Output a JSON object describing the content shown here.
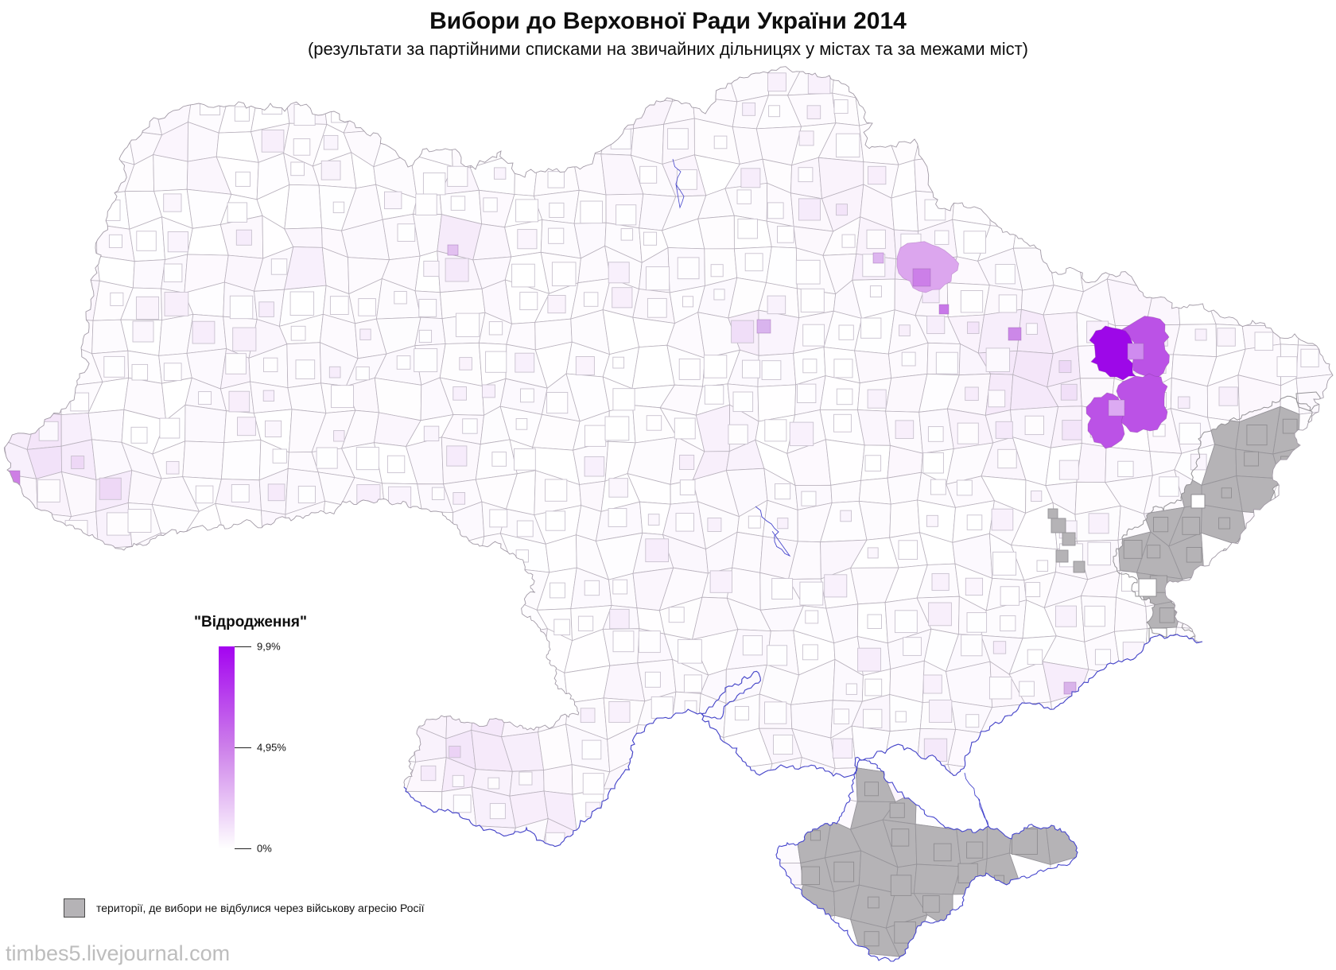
{
  "title": "Вибори до Верховної Ради України 2014",
  "subtitle": "(результати за партійними списками на звичайних дільницях у містах та за межами міст)",
  "map_legend": {
    "title": "\"Відродження\"",
    "ticks": [
      {
        "label": "9,9%",
        "value": 9.9
      },
      {
        "label": "4,95%",
        "value": 4.95
      },
      {
        "label": "0%",
        "value": 0
      }
    ],
    "gradient_top_color": "#a404f0",
    "gradient_mid_color": "#cd80ea",
    "gradient_bottom_color": "#ffffff"
  },
  "occupied_legend": {
    "label": "території, де вибори не відбулися через військову агресію Росії",
    "swatch_color": "#b5b3b6"
  },
  "watermark": "timbes5.livejournal.com",
  "map_colors": {
    "district_border": "#b9b2bd",
    "land_border": "#a29aa6",
    "coast_blue": "#4646cd",
    "occupied_fill": "#b5b3b6",
    "occupied_border": "#949296",
    "occupied_inner_border": "#97959a",
    "max_purple": "#9d08e8",
    "mid_purple": "#bb52e6",
    "tint_purple": "#dfb7ef",
    "city_square_border": "#c9c2cf"
  }
}
